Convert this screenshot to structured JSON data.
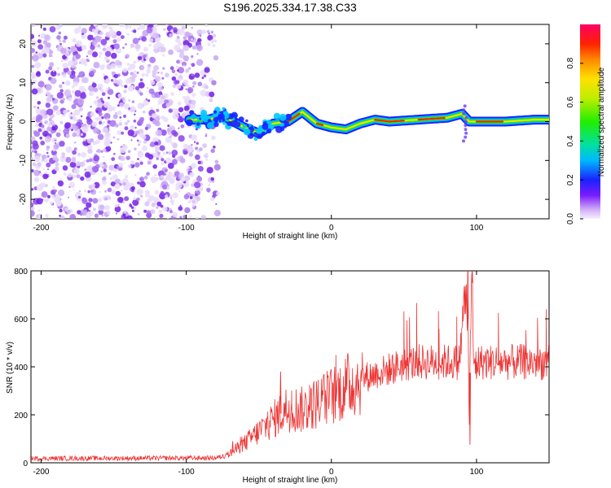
{
  "title": "S196.2025.334.17.38.C33",
  "chart_data": [
    {
      "type": "heatmap",
      "xlabel": "Height of straight line (km)",
      "ylabel": "Frequency (Hz)",
      "xlim": [
        -207,
        150
      ],
      "ylim": [
        -25,
        25
      ],
      "xticks": [
        -200,
        -100,
        0,
        100
      ],
      "yticks": [
        -20,
        -10,
        0,
        10,
        20
      ],
      "colorbar": {
        "label": "Normalized spectral amplitude",
        "range": [
          0,
          1
        ],
        "ticks": [
          0.0,
          0.2,
          0.4,
          0.6,
          0.8
        ]
      },
      "noise_region": [
        -207,
        -78
      ],
      "ridge": {
        "x": [
          -98,
          -85,
          -75,
          -60,
          -50,
          -40,
          -30,
          -20,
          -10,
          0,
          10,
          20,
          30,
          40,
          60,
          80,
          90,
          95,
          100,
          120,
          140,
          150
        ],
        "y": [
          0.5,
          0.5,
          1.5,
          -1.5,
          -3,
          -0.5,
          0,
          2.5,
          -0.5,
          -1.5,
          -2,
          -0.5,
          0.5,
          0,
          0.5,
          1,
          2,
          0,
          0,
          0,
          0.5,
          0.5
        ]
      }
    },
    {
      "type": "line",
      "xlabel": "Height of straight line (km)",
      "ylabel": "SNR (10 * v/v)",
      "xlim": [
        -207,
        150
      ],
      "ylim": [
        0,
        800
      ],
      "xticks": [
        -200,
        -100,
        0,
        100
      ],
      "yticks": [
        0,
        200,
        400,
        600,
        800
      ],
      "color": "#ee3333",
      "envelope": {
        "x": [
          -207,
          -80,
          -72,
          -60,
          -40,
          -30,
          -20,
          0,
          20,
          40,
          50,
          60,
          70,
          80,
          88,
          90,
          92,
          94,
          95,
          96,
          97,
          98,
          100,
          110,
          120,
          130,
          150
        ],
        "mean": [
          18,
          20,
          30,
          80,
          180,
          230,
          220,
          280,
          350,
          390,
          410,
          420,
          420,
          420,
          420,
          550,
          700,
          600,
          150,
          600,
          750,
          400,
          420,
          420,
          420,
          420,
          420
        ]
      },
      "spikes": [
        {
          "x": -35,
          "y": 380
        },
        {
          "x": -68,
          "y": 90
        },
        {
          "x": 92,
          "y": 660
        },
        {
          "x": 94,
          "y": 800
        },
        {
          "x": 95.5,
          "y": 75
        },
        {
          "x": 97,
          "y": 800
        },
        {
          "x": 100,
          "y": 350
        }
      ]
    }
  ]
}
